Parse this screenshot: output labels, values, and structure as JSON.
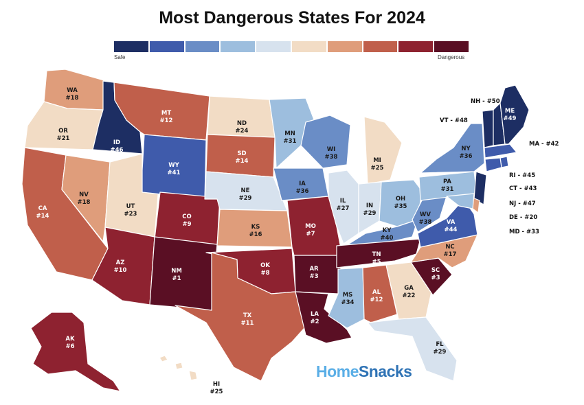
{
  "title": "Most Dangerous States For 2024",
  "legend": {
    "low_label": "Safe",
    "high_label": "Dangerous",
    "colors": [
      "#1d2e63",
      "#3f5bab",
      "#6a8dc6",
      "#9dbede",
      "#d7e2ee",
      "#f2dcc5",
      "#df9d7b",
      "#c05f4b",
      "#8e2230",
      "#5a0f24"
    ]
  },
  "brand": {
    "part1": "Home",
    "part2": "Snacks"
  },
  "states": [
    {
      "code": "WA",
      "rank": 18
    },
    {
      "code": "OR",
      "rank": 21
    },
    {
      "code": "CA",
      "rank": 14
    },
    {
      "code": "ID",
      "rank": 46
    },
    {
      "code": "NV",
      "rank": 18
    },
    {
      "code": "UT",
      "rank": 23
    },
    {
      "code": "AZ",
      "rank": 10
    },
    {
      "code": "MT",
      "rank": 12
    },
    {
      "code": "WY",
      "rank": 41
    },
    {
      "code": "CO",
      "rank": 9
    },
    {
      "code": "NM",
      "rank": 1
    },
    {
      "code": "ND",
      "rank": 24
    },
    {
      "code": "SD",
      "rank": 14
    },
    {
      "code": "NE",
      "rank": 29
    },
    {
      "code": "KS",
      "rank": 16
    },
    {
      "code": "OK",
      "rank": 8
    },
    {
      "code": "TX",
      "rank": 11
    },
    {
      "code": "MN",
      "rank": 31
    },
    {
      "code": "IA",
      "rank": 36
    },
    {
      "code": "MO",
      "rank": 7
    },
    {
      "code": "AR",
      "rank": 3
    },
    {
      "code": "LA",
      "rank": 2
    },
    {
      "code": "WI",
      "rank": 38
    },
    {
      "code": "IL",
      "rank": 27
    },
    {
      "code": "MI",
      "rank": 25
    },
    {
      "code": "IN",
      "rank": 29
    },
    {
      "code": "OH",
      "rank": 35
    },
    {
      "code": "KY",
      "rank": 40
    },
    {
      "code": "TN",
      "rank": 5
    },
    {
      "code": "MS",
      "rank": 34
    },
    {
      "code": "AL",
      "rank": 12
    },
    {
      "code": "GA",
      "rank": 22
    },
    {
      "code": "FL",
      "rank": 29
    },
    {
      "code": "SC",
      "rank": 3
    },
    {
      "code": "NC",
      "rank": 17
    },
    {
      "code": "VA",
      "rank": 44
    },
    {
      "code": "WV",
      "rank": 38
    },
    {
      "code": "PA",
      "rank": 31
    },
    {
      "code": "NY",
      "rank": 36
    },
    {
      "code": "ME",
      "rank": 49
    },
    {
      "code": "AK",
      "rank": 6
    },
    {
      "code": "HI",
      "rank": 25
    },
    {
      "code": "NH",
      "rank": 50
    },
    {
      "code": "VT",
      "rank": 48
    },
    {
      "code": "MA",
      "rank": 42
    },
    {
      "code": "RI",
      "rank": 45
    },
    {
      "code": "CT",
      "rank": 43
    },
    {
      "code": "NJ",
      "rank": 47
    },
    {
      "code": "DE",
      "rank": 20
    },
    {
      "code": "MD",
      "rank": 33
    }
  ],
  "side_labels": [
    {
      "code": "NH",
      "rank": 50
    },
    {
      "code": "VT",
      "rank": 48
    },
    {
      "code": "MA",
      "rank": 42
    },
    {
      "code": "RI",
      "rank": 45
    },
    {
      "code": "CT",
      "rank": 43
    },
    {
      "code": "NJ",
      "rank": 47
    },
    {
      "code": "DE",
      "rank": 20
    },
    {
      "code": "MD",
      "rank": 33
    }
  ]
}
